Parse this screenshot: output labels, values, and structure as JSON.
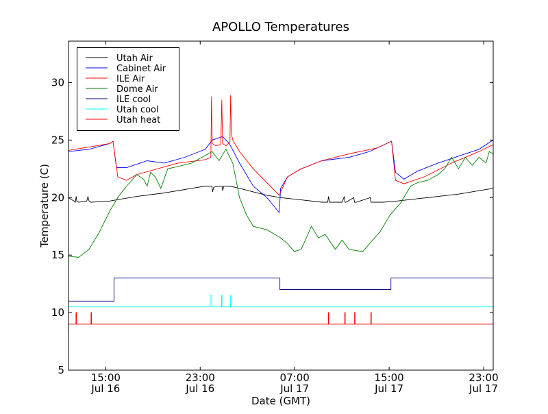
{
  "chart_data": {
    "type": "line",
    "title": "APOLLO Temperatures",
    "xlabel": "Date (GMT)",
    "ylabel": "Temperature (C)",
    "x_units": "hours since Jul 16 00:00 GMT",
    "xlim": [
      11.85,
      47.81
    ],
    "ylim": [
      5,
      33.6
    ],
    "yticks": [
      5,
      10,
      15,
      20,
      25,
      30
    ],
    "xticks": [
      {
        "x": 15,
        "line1": "15:00",
        "line2": "Jul 16"
      },
      {
        "x": 23,
        "line1": "23:00",
        "line2": "Jul 16"
      },
      {
        "x": 31,
        "line1": "07:00",
        "line2": "Jul 17"
      },
      {
        "x": 39,
        "line1": "15:00",
        "line2": "Jul 17"
      },
      {
        "x": 47,
        "line1": "23:00",
        "line2": "Jul 17"
      }
    ],
    "grid": false,
    "legend_position": "top-left",
    "series": [
      {
        "name": "Utah Air",
        "color": "#000000",
        "x": [
          11.85,
          12.3,
          12.43,
          12.5,
          12.55,
          12.7,
          13.4,
          13.5,
          13.59,
          13.75,
          15.33,
          17.64,
          19.96,
          22.28,
          23.44,
          24.0,
          24.05,
          24.15,
          24.6,
          24.85,
          24.9,
          25.0,
          25.5,
          26.33,
          27.49,
          28.65,
          29.81,
          31.55,
          33.29,
          33.8,
          33.87,
          33.95,
          35.02,
          35.2,
          35.26,
          35.35,
          36.0,
          36.07,
          36.2,
          37.4,
          37.46,
          37.6,
          38.5,
          39.66,
          41.4,
          43.14,
          44.87,
          46.61,
          47.81
        ],
        "y": [
          20,
          19.7,
          19.6,
          20.1,
          19.7,
          19.6,
          19.7,
          20.1,
          19.7,
          19.6,
          19.7,
          20.1,
          20.4,
          20.8,
          21,
          21,
          20.5,
          20.9,
          21,
          21,
          20.6,
          21,
          21,
          20.8,
          20.5,
          20.2,
          20,
          19.8,
          19.6,
          19.6,
          20.1,
          19.6,
          19.6,
          20.1,
          19.6,
          19.6,
          20,
          19.6,
          19.6,
          20,
          19.6,
          19.6,
          19.6,
          19.7,
          19.9,
          20.1,
          20.3,
          20.6,
          20.8
        ]
      },
      {
        "name": "Cabinet Air",
        "color": "#0000ff",
        "x": [
          11.85,
          13.59,
          15.33,
          15.62,
          15.91,
          16.77,
          17.64,
          18.51,
          19.96,
          21.7,
          23.44,
          24.02,
          24.89,
          25.47,
          26.33,
          27.49,
          28.65,
          29.69,
          29.81,
          30.39,
          31.55,
          33.29,
          35.6,
          37.34,
          39.2,
          39.54,
          40.24,
          41.4,
          43.14,
          44.87,
          46.61,
          47.81
        ],
        "y": [
          24,
          24.2,
          24.7,
          24.9,
          22.6,
          22.6,
          22.9,
          23.2,
          23,
          23.5,
          24.2,
          25,
          25.3,
          24.7,
          23,
          21,
          20,
          18.7,
          20.8,
          21.8,
          22.5,
          23.2,
          23.5,
          24,
          24.9,
          22.2,
          21.6,
          22.3,
          23,
          23.6,
          24.2,
          25
        ]
      },
      {
        "name": "ILE Air",
        "color": "#ff0000",
        "x": [
          11.85,
          13.59,
          15.33,
          15.62,
          16.02,
          16.77,
          17.64,
          19.38,
          21.12,
          23.44,
          23.9,
          23.96,
          24.02,
          24.31,
          24.75,
          24.83,
          24.9,
          25.18,
          25.52,
          25.58,
          25.65,
          25.76,
          26.33,
          27.49,
          28.94,
          29.69,
          29.81,
          30.39,
          31.55,
          33.29,
          35.6,
          37.92,
          39.2,
          39.54,
          40.24,
          41.98,
          44.29,
          46.61,
          47.81
        ],
        "y": [
          24.1,
          24.4,
          24.7,
          24.9,
          21.8,
          21.5,
          22,
          22.5,
          23,
          23.3,
          23.5,
          28.8,
          24.7,
          24.5,
          24.6,
          28.5,
          24.7,
          24.5,
          24.8,
          28.9,
          25.5,
          25,
          24,
          22.5,
          21,
          20.2,
          20.5,
          21.8,
          22.5,
          23.2,
          23.8,
          24.3,
          24.9,
          21.5,
          21.2,
          21.8,
          23,
          24,
          24.6
        ]
      },
      {
        "name": "Dome Air",
        "color": "#008000",
        "x": [
          11.85,
          12.7,
          13.59,
          14.46,
          15.33,
          16.02,
          16.77,
          17.64,
          18.2,
          18.51,
          18.8,
          19.2,
          19.67,
          20.25,
          21.12,
          22.28,
          23.15,
          24.02,
          24.6,
          25.18,
          25.76,
          26.33,
          26.91,
          27.49,
          28.65,
          29.81,
          30.39,
          30.97,
          31.55,
          32.42,
          33.0,
          33.58,
          34.45,
          35.02,
          35.6,
          36.76,
          37.34,
          38.21,
          39.08,
          39.95,
          40.82,
          41.4,
          42.27,
          43.14,
          43.7,
          44.29,
          44.87,
          45.45,
          46.03,
          46.61,
          47.2,
          47.48,
          47.81
        ],
        "y": [
          14.9,
          14.8,
          15.5,
          17,
          18.8,
          20,
          21,
          22,
          21.6,
          21,
          22.2,
          21.8,
          20.8,
          22.5,
          22.7,
          23,
          23.5,
          24,
          23.2,
          24.2,
          23,
          20,
          18.5,
          17.5,
          17.2,
          16.5,
          16,
          15.3,
          15.5,
          17.5,
          16.5,
          16.8,
          15.5,
          16.3,
          15.5,
          15.3,
          16,
          17,
          18.5,
          19.5,
          21,
          21.3,
          21.5,
          22,
          22.5,
          23.5,
          22.5,
          23.5,
          22.8,
          23.5,
          23,
          24,
          23.8
        ]
      },
      {
        "name": "ILE cool",
        "color": "#000080",
        "x": [
          11.85,
          15.7,
          15.7,
          29.75,
          29.75,
          39.15,
          39.15,
          47.81
        ],
        "y": [
          11,
          11,
          13,
          13,
          12,
          12,
          13,
          13
        ]
      },
      {
        "name": "Utah cool",
        "color": "#00ffff",
        "x": [
          11.85,
          23.85,
          23.85,
          23.98,
          23.98,
          24.8,
          24.8,
          24.85,
          24.85,
          25.57,
          25.57,
          25.62,
          25.62,
          47.81
        ],
        "y": [
          10.5,
          10.5,
          11.5,
          11.5,
          10.5,
          10.5,
          11.5,
          11.5,
          10.5,
          10.5,
          11.5,
          11.5,
          10.5,
          10.5
        ]
      },
      {
        "name": "Utah heat",
        "color": "#ff0000",
        "x": [
          11.85,
          11.86,
          12.48,
          12.48,
          12.52,
          12.52,
          13.76,
          13.76,
          13.8,
          13.8,
          33.85,
          33.85,
          33.89,
          33.89,
          35.24,
          35.24,
          35.28,
          35.28,
          36.07,
          36.07,
          36.11,
          36.11,
          37.45,
          37.45,
          37.49,
          37.49,
          47.81
        ],
        "y": [
          8,
          9,
          9,
          10,
          10,
          9,
          9,
          10,
          10,
          9,
          9,
          10,
          10,
          9,
          9,
          10,
          10,
          9,
          9,
          10,
          10,
          9,
          9,
          10,
          10,
          9,
          9
        ]
      }
    ]
  }
}
